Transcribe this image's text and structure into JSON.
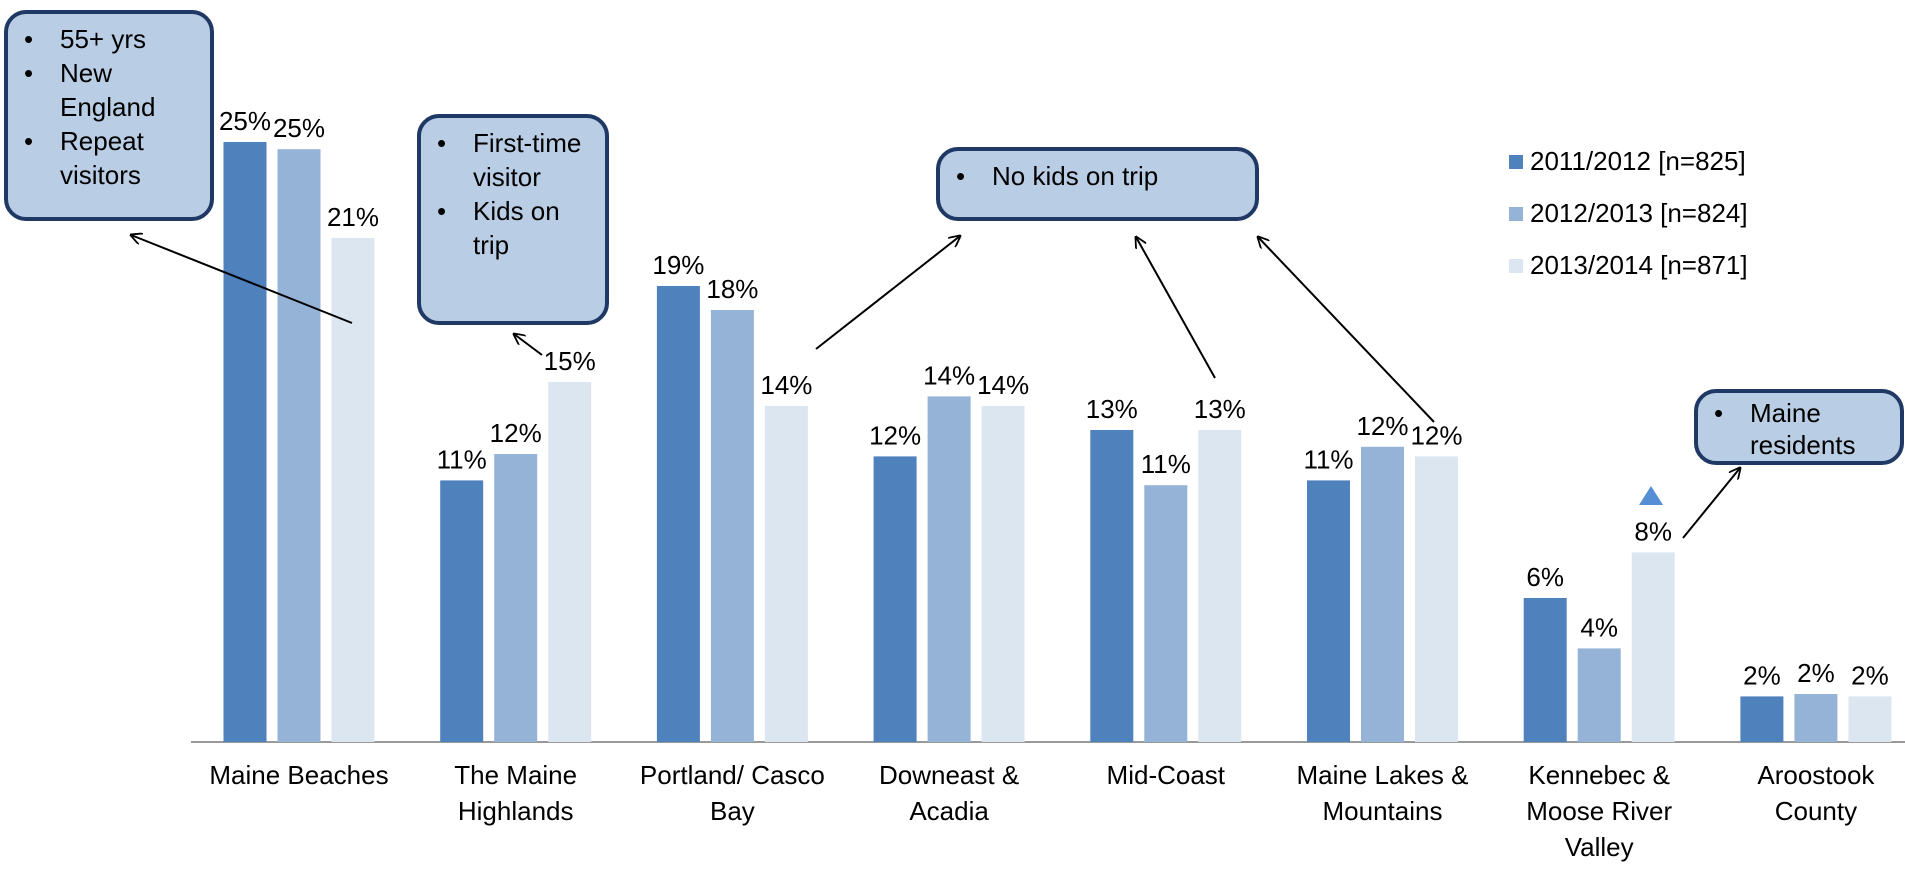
{
  "chart_data": {
    "type": "bar",
    "categories": [
      "Maine Beaches",
      "The Maine Highlands",
      "Portland/ Casco Bay",
      "Downeast & Acadia",
      "Mid-Coast",
      "Maine Lakes & Mountains",
      "Kennebec & Moose River Valley",
      "Aroostook County"
    ],
    "series": [
      {
        "name": "2011/2012 [n=825]",
        "color": "#4f81bd",
        "values": [
          25,
          10.9,
          19,
          11.9,
          13,
          10.9,
          6,
          1.9
        ],
        "value_labels": [
          "25%",
          "11%",
          "19%",
          "12%",
          "13%",
          "11%",
          "6%",
          "2%"
        ]
      },
      {
        "name": "2012/2013 [n=824]",
        "color": "#95b3d7",
        "values": [
          24.7,
          12,
          18,
          14.4,
          10.7,
          12.3,
          3.9,
          2
        ],
        "value_labels": [
          "25%",
          "12%",
          "18%",
          "14%",
          "11%",
          "12%",
          "4%",
          "2%"
        ]
      },
      {
        "name": "2013/2014 [n=871]",
        "color": "#dce6f1",
        "values": [
          21,
          15,
          14,
          14,
          13,
          11.9,
          7.9,
          1.9
        ],
        "value_labels": [
          "21%",
          "15%",
          "14%",
          "14%",
          "13%",
          "12%",
          "8%",
          "2%"
        ]
      }
    ],
    "ylim": [
      0,
      25
    ],
    "legend": "upper-right",
    "annotations": [
      {
        "items": [
          "55+ yrs",
          "New England",
          "Repeat visitors"
        ]
      },
      {
        "items": [
          "First-time visitor",
          "Kids on trip"
        ]
      },
      {
        "items": [
          "No kids on trip"
        ]
      },
      {
        "items": [
          "Maine residents"
        ]
      }
    ]
  }
}
